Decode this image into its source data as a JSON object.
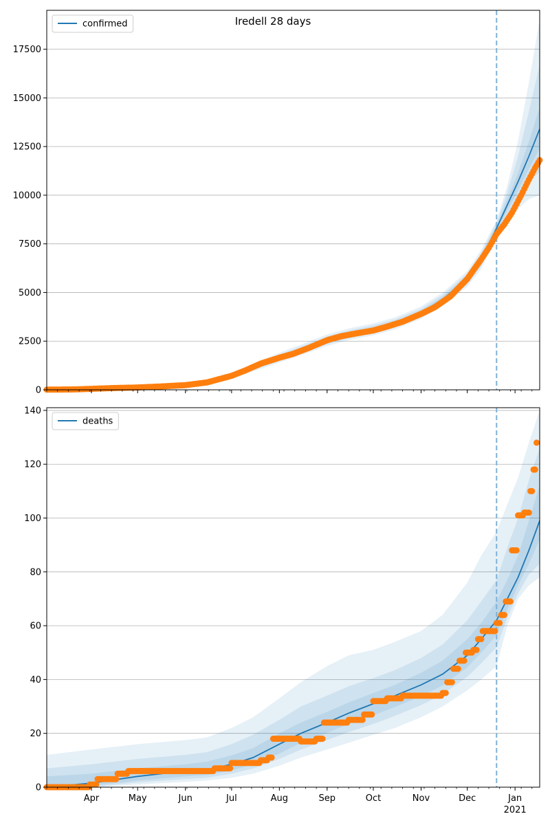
{
  "figure_title": "Iredell 28 days",
  "colors": {
    "model": "#1f77b4",
    "observed": "#ff7f0e",
    "band": "#1f77b4",
    "forecast_line": "#7fb1d6",
    "grid": "#b0b0b0"
  },
  "chart_data": [
    {
      "type": "line",
      "title": "",
      "legend": {
        "label": "confirmed",
        "placement": "top-left"
      },
      "xlabel": "",
      "ylabel": "",
      "xlim": [
        "2020-03-03",
        "2021-01-17"
      ],
      "ylim": [
        0,
        19500
      ],
      "yticks": [
        0,
        2500,
        5000,
        7500,
        10000,
        12500,
        15000,
        17500
      ],
      "grid": "horizontal",
      "forecast_start": "2020-12-20",
      "series": [
        {
          "name": "confirmed",
          "role": "model",
          "x": [
            "2020-03-03",
            "2020-04-01",
            "2020-05-01",
            "2020-06-01",
            "2020-06-15",
            "2020-07-01",
            "2020-07-15",
            "2020-08-01",
            "2020-08-15",
            "2020-09-01",
            "2020-09-15",
            "2020-10-01",
            "2020-10-15",
            "2020-11-01",
            "2020-11-15",
            "2020-12-01",
            "2020-12-10",
            "2020-12-20",
            "2020-12-27",
            "2021-01-03",
            "2021-01-10",
            "2021-01-17"
          ],
          "y": [
            0,
            40,
            140,
            240,
            380,
            720,
            1150,
            1650,
            2050,
            2550,
            2850,
            3100,
            3400,
            3950,
            4650,
            5700,
            6700,
            8300,
            9500,
            10700,
            12000,
            13400
          ],
          "bands": [
            {
              "lower": [
                0,
                30,
                110,
                190,
                300,
                580,
                950,
                1400,
                1780,
                2250,
                2550,
                2800,
                3100,
                3650,
                4300,
                5300,
                6200,
                7900,
                8600,
                9300,
                9800,
                10000
              ],
              "upper": [
                0,
                55,
                180,
                300,
                460,
                860,
                1350,
                1900,
                2320,
                2850,
                3150,
                3420,
                3720,
                4280,
                5000,
                6100,
                7200,
                8700,
                10500,
                12800,
                15800,
                19000
              ]
            },
            {
              "lower": [
                0,
                33,
                120,
                205,
                325,
                620,
                1010,
                1480,
                1870,
                2350,
                2650,
                2900,
                3200,
                3750,
                4420,
                5420,
                6350,
                8000,
                8900,
                9800,
                10700,
                11200
              ],
              "upper": [
                0,
                50,
                165,
                280,
                430,
                810,
                1280,
                1810,
                2220,
                2740,
                3050,
                3310,
                3610,
                4160,
                4870,
                5970,
                7030,
                8580,
                10150,
                12000,
                14300,
                16700
              ]
            },
            {
              "lower": [
                0,
                36,
                128,
                220,
                350,
                665,
                1070,
                1560,
                1950,
                2450,
                2750,
                3000,
                3300,
                3850,
                4530,
                5560,
                6520,
                8150,
                9200,
                10250,
                11350,
                12400
              ],
              "upper": [
                0,
                45,
                152,
                260,
                410,
                775,
                1220,
                1740,
                2140,
                2650,
                2950,
                3200,
                3500,
                4050,
                4770,
                5840,
                6880,
                8450,
                9800,
                11150,
                12750,
                14500
              ]
            }
          ]
        },
        {
          "name": "",
          "role": "observed",
          "x": [
            "2020-03-03",
            "2020-03-20",
            "2020-04-01",
            "2020-04-15",
            "2020-05-01",
            "2020-05-15",
            "2020-06-01",
            "2020-06-15",
            "2020-07-01",
            "2020-07-10",
            "2020-07-20",
            "2020-08-01",
            "2020-08-10",
            "2020-08-20",
            "2020-09-01",
            "2020-09-10",
            "2020-09-20",
            "2020-10-01",
            "2020-10-10",
            "2020-10-20",
            "2020-11-01",
            "2020-11-10",
            "2020-11-20",
            "2020-12-01",
            "2020-12-05",
            "2020-12-10",
            "2020-12-15",
            "2020-12-20",
            "2020-12-25",
            "2020-12-30",
            "2021-01-05",
            "2021-01-10",
            "2021-01-14",
            "2021-01-17"
          ],
          "y": [
            10,
            20,
            50,
            90,
            120,
            170,
            240,
            380,
            720,
            1000,
            1350,
            1650,
            1850,
            2150,
            2550,
            2750,
            2900,
            3050,
            3250,
            3500,
            3900,
            4250,
            4800,
            5700,
            6150,
            6700,
            7300,
            8000,
            8500,
            9100,
            10000,
            10800,
            11400,
            11800
          ]
        }
      ]
    },
    {
      "type": "line",
      "title": "",
      "legend": {
        "label": "deaths",
        "placement": "top-left"
      },
      "xlabel": "",
      "ylabel": "",
      "xlim": [
        "2020-03-03",
        "2021-01-17"
      ],
      "ylim": [
        0,
        141
      ],
      "yticks": [
        0,
        20,
        40,
        60,
        80,
        100,
        120,
        140
      ],
      "xticks": [
        "Apr",
        "May",
        "Jun",
        "Jul",
        "Aug",
        "Sep",
        "Oct",
        "Nov",
        "Dec",
        "Jan"
      ],
      "xtick_sub": "2021",
      "grid": "horizontal",
      "forecast_start": "2020-12-20",
      "series": [
        {
          "name": "deaths",
          "role": "model",
          "x": [
            "2020-03-03",
            "2020-04-01",
            "2020-05-01",
            "2020-06-01",
            "2020-06-15",
            "2020-07-01",
            "2020-07-15",
            "2020-08-01",
            "2020-08-15",
            "2020-09-01",
            "2020-09-15",
            "2020-10-01",
            "2020-10-15",
            "2020-11-01",
            "2020-11-15",
            "2020-12-01",
            "2020-12-10",
            "2020-12-20",
            "2020-12-27",
            "2021-01-03",
            "2021-01-10",
            "2021-01-17"
          ],
          "y": [
            0,
            1.5,
            4,
            6,
            6.5,
            8.5,
            11,
            16,
            20,
            24,
            27.5,
            31,
            34,
            38,
            42,
            49,
            55,
            62,
            70,
            78,
            88,
            99
          ],
          "bands": [
            {
              "lower": [
                0,
                0,
                1,
                2,
                2.5,
                3.5,
                5,
                8,
                11,
                14,
                16.5,
                19.5,
                22,
                26,
                30,
                36,
                40,
                45,
                60,
                70,
                75,
                78
              ],
              "upper": [
                12,
                14,
                16,
                17.5,
                18.5,
                22,
                26,
                33,
                39,
                45,
                49,
                51,
                54,
                58,
                64,
                76,
                86,
                95,
                105,
                115,
                128,
                140
              ]
            },
            {
              "lower": [
                0,
                0,
                1.8,
                3,
                3.5,
                5,
                7,
                10.5,
                14,
                17.5,
                20.5,
                23.5,
                26.5,
                30.5,
                34.5,
                41,
                46,
                52,
                63,
                72,
                79,
                83
              ],
              "upper": [
                7,
                8.5,
                10.5,
                12,
                13,
                16,
                19.5,
                25,
                30,
                34,
                37.5,
                40.5,
                43.5,
                48,
                53,
                62,
                69,
                77,
                89,
                100,
                114,
                126
              ]
            },
            {
              "lower": [
                0,
                0.5,
                2.5,
                4,
                4.5,
                6.2,
                8.5,
                12.5,
                16.5,
                20.2,
                23.5,
                26.7,
                29.8,
                33.8,
                37.8,
                44.5,
                50,
                56.5,
                66,
                75,
                83,
                92
              ],
              "upper": [
                4,
                5,
                7,
                8.5,
                9.5,
                11.8,
                14.5,
                20,
                24,
                28,
                31.5,
                35,
                38,
                42.5,
                47,
                55,
                61,
                69,
                77,
                86,
                99,
                112
              ]
            }
          ]
        },
        {
          "name": "",
          "role": "observed",
          "x": [
            "2020-03-03",
            "2020-03-31",
            "2020-04-05",
            "2020-04-10",
            "2020-04-18",
            "2020-04-25",
            "2020-05-05",
            "2020-06-15",
            "2020-06-20",
            "2020-07-01",
            "2020-07-10",
            "2020-07-20",
            "2020-07-25",
            "2020-07-28",
            "2020-08-05",
            "2020-08-15",
            "2020-08-25",
            "2020-08-30",
            "2020-09-05",
            "2020-09-15",
            "2020-09-25",
            "2020-10-01",
            "2020-10-10",
            "2020-10-20",
            "2020-11-15",
            "2020-11-18",
            "2020-11-22",
            "2020-11-26",
            "2020-11-30",
            "2020-12-05",
            "2020-12-08",
            "2020-12-11",
            "2020-12-20",
            "2020-12-23",
            "2020-12-26",
            "2020-12-30",
            "2021-01-03",
            "2021-01-07",
            "2021-01-11",
            "2021-01-13",
            "2021-01-15"
          ],
          "y": [
            0,
            1,
            3,
            3,
            5,
            6,
            6,
            6,
            7,
            9,
            9,
            10,
            11,
            18,
            18,
            17,
            18,
            24,
            24,
            25,
            27,
            32,
            33,
            34,
            35,
            39,
            44,
            47,
            50,
            51,
            55,
            58,
            61,
            64,
            69,
            88,
            101,
            102,
            110,
            118,
            128
          ]
        }
      ]
    }
  ]
}
